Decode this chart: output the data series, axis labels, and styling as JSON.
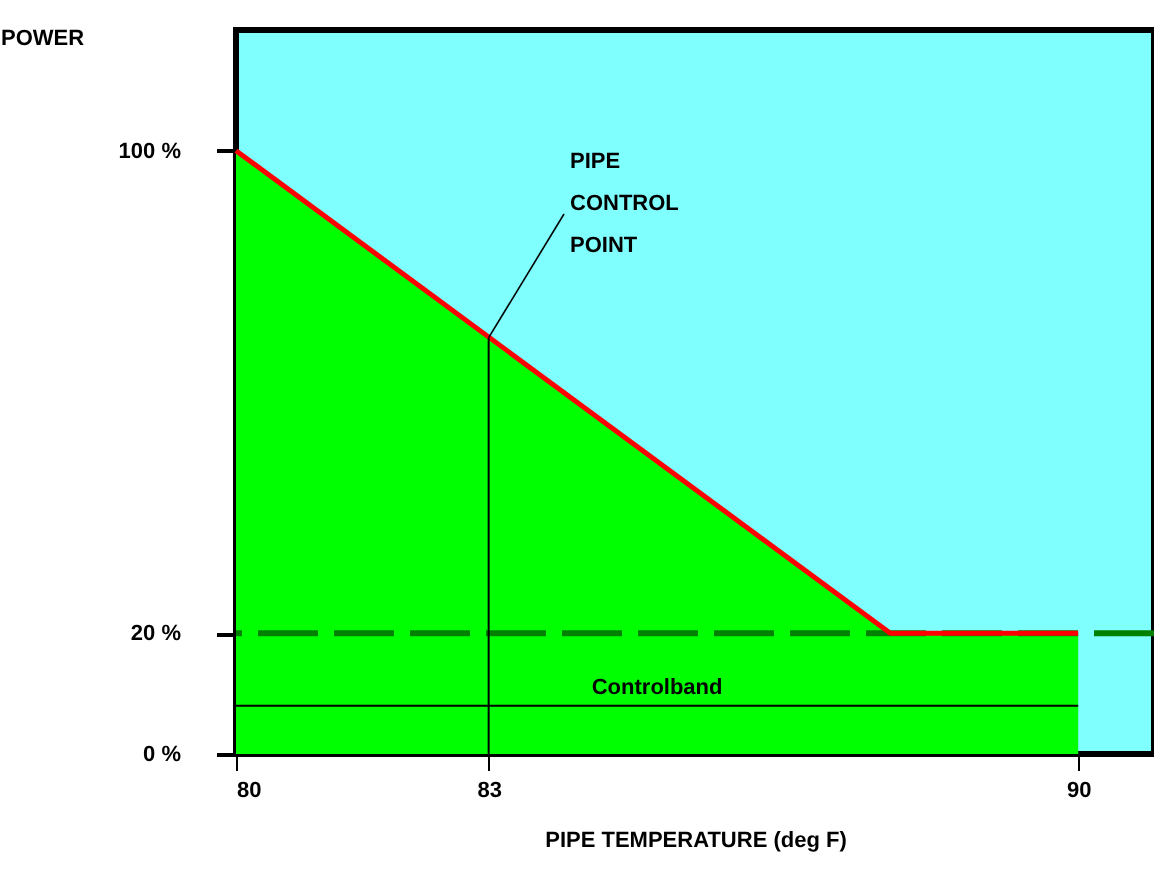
{
  "chart_data": {
    "type": "area",
    "xlabel": "PIPE TEMPERATURE (deg F)",
    "ylabel": "POWER",
    "series": [
      {
        "color": "#00ff00",
        "x": [
          80,
          87.77,
          90
        ],
        "values": [
          100,
          20,
          20
        ]
      },
      {
        "type": "line",
        "color": "#ff0000",
        "x": [
          80,
          87.77,
          90
        ],
        "values": [
          100,
          20,
          20
        ]
      },
      {
        "type": "line",
        "color": "#000000",
        "x": [
          83,
          83
        ],
        "values": [
          0,
          69
        ]
      },
      {
        "type": "line",
        "name": "Controlband",
        "color": "#000000",
        "x": [
          80,
          90
        ],
        "values": [
          8,
          8
        ]
      }
    ],
    "xlim": [
      80,
      90.9
    ],
    "xticks": [
      80,
      83,
      90
    ],
    "ylim": [
      0,
      120
    ],
    "yticks": [
      {
        "value": 0,
        "label": "0 %"
      },
      {
        "value": 20,
        "label": "20 %"
      },
      {
        "value": 100,
        "label": "100 %"
      }
    ],
    "ref_lines": [
      {
        "axis": "y",
        "value": 20,
        "color": "#008000",
        "line_style": "dashed"
      }
    ],
    "annotations": [
      {
        "text": "PIPE CONTROL POINT",
        "x": 83,
        "y": 69
      }
    ],
    "grid": false
  }
}
